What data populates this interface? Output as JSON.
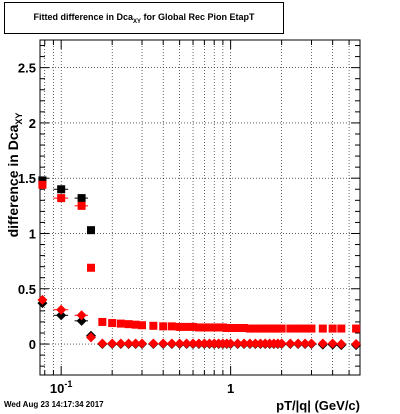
{
  "title": {
    "text_main": "Fitted difference in Dca",
    "text_sub": "XY",
    "text_rest": " for Global Rec Pion EtapT"
  },
  "timestamp": "Wed Aug 23 14:17:34 2017",
  "chart_data": {
    "type": "scatter",
    "xlabel": "pT/|q| (GeV/c)",
    "ylabel_main": "difference in Dca",
    "ylabel_sub": "XY",
    "x_scale": "log",
    "xlim": [
      0.075,
      5.8
    ],
    "ylim": [
      -0.28,
      2.75
    ],
    "x_ticks": [
      {
        "value": 0.1,
        "label": "10",
        "exp": "-1"
      },
      {
        "value": 1,
        "label": "1",
        "exp": ""
      }
    ],
    "y_ticks": [
      0,
      0.5,
      1,
      1.5,
      2,
      2.5
    ],
    "y_tick_labels": [
      "0",
      "0.5",
      "1",
      "1.5",
      "2",
      "2.5"
    ],
    "grid": true,
    "colors": {
      "black": "#000000",
      "red": "#ff0000"
    },
    "series": [
      {
        "color": "#000000",
        "marker": "square",
        "x": [
          0.0775,
          0.1,
          0.132,
          0.15
        ],
        "y": [
          1.48,
          1.4,
          1.32,
          1.03
        ],
        "xerr": [
          0.0025,
          0.01,
          0.012,
          0.003
        ]
      },
      {
        "color": "#ff0000",
        "marker": "square",
        "x": [
          0.0775,
          0.1,
          0.132,
          0.15,
          0.175,
          0.2,
          0.225,
          0.25,
          0.275,
          0.3,
          0.35,
          0.4,
          0.45,
          0.5,
          0.55,
          0.6,
          0.65,
          0.7,
          0.75,
          0.8,
          0.85,
          0.9,
          0.95,
          1.0,
          1.1,
          1.2,
          1.3,
          1.4,
          1.5,
          1.6,
          1.7,
          1.8,
          1.9,
          2.0,
          2.25,
          2.5,
          2.75,
          3.0,
          3.5,
          4.0,
          4.5,
          5.5
        ],
        "y": [
          1.44,
          1.32,
          1.25,
          0.69,
          0.2,
          0.19,
          0.185,
          0.18,
          0.175,
          0.17,
          0.165,
          0.16,
          0.16,
          0.155,
          0.155,
          0.155,
          0.15,
          0.15,
          0.15,
          0.15,
          0.15,
          0.15,
          0.145,
          0.145,
          0.145,
          0.145,
          0.14,
          0.14,
          0.14,
          0.14,
          0.14,
          0.14,
          0.14,
          0.14,
          0.14,
          0.14,
          0.14,
          0.14,
          0.14,
          0.14,
          0.14,
          0.14
        ],
        "xerr": [
          0.0025,
          0.01,
          0.012,
          0.003,
          0,
          0,
          0,
          0,
          0,
          0,
          0,
          0,
          0,
          0,
          0,
          0,
          0,
          0,
          0,
          0,
          0,
          0,
          0,
          0,
          0,
          0,
          0,
          0,
          0,
          0,
          0,
          0,
          0,
          0,
          0,
          0,
          0,
          0,
          0,
          0,
          0,
          0
        ]
      },
      {
        "color": "#000000",
        "marker": "diamond",
        "x": [
          0.0775,
          0.1,
          0.132,
          0.15,
          0.175,
          0.2,
          0.225,
          0.25,
          0.275,
          0.3,
          0.35,
          0.4,
          0.45,
          0.5,
          0.55,
          0.6,
          0.65,
          0.7,
          0.75,
          0.8,
          0.85,
          0.9,
          0.95,
          1.0,
          1.1,
          1.2,
          1.3,
          1.4,
          1.5,
          1.6,
          1.7,
          1.8,
          1.9,
          2.0,
          2.25,
          2.5,
          2.75,
          3.0,
          3.5,
          4.0,
          4.5,
          5.5
        ],
        "y": [
          0.37,
          0.26,
          0.21,
          0.075,
          0.0,
          0.0,
          0.0,
          0.0,
          0.0,
          0.0,
          0.0,
          0.0,
          0.0,
          0.0,
          0.0,
          0.0,
          0.0,
          0.0,
          0.0,
          0.0,
          0.0,
          0.0,
          0.0,
          0.0,
          0.0,
          0.0,
          0.0,
          0.0,
          0.0,
          0.0,
          0.0,
          0.0,
          0.0,
          0.0,
          0.0,
          0.0,
          0.0,
          0.0,
          -0.005,
          -0.005,
          -0.01,
          -0.01
        ],
        "xerr": [
          0.0025,
          0.01,
          0.012,
          0.003,
          0,
          0,
          0,
          0,
          0,
          0,
          0,
          0,
          0,
          0,
          0,
          0,
          0,
          0,
          0,
          0,
          0,
          0,
          0,
          0,
          0,
          0,
          0,
          0,
          0,
          0,
          0,
          0,
          0,
          0,
          0,
          0,
          0,
          0,
          0,
          0,
          0,
          0
        ]
      },
      {
        "color": "#ff0000",
        "marker": "diamond",
        "x": [
          0.0775,
          0.1,
          0.132,
          0.15,
          0.175,
          0.2,
          0.225,
          0.25,
          0.275,
          0.3,
          0.35,
          0.4,
          0.45,
          0.5,
          0.55,
          0.6,
          0.65,
          0.7,
          0.75,
          0.8,
          0.85,
          0.9,
          0.95,
          1.0,
          1.1,
          1.2,
          1.3,
          1.4,
          1.5,
          1.6,
          1.7,
          1.8,
          1.9,
          2.0,
          2.25,
          2.5,
          2.75,
          3.0,
          3.5,
          4.0,
          4.5,
          5.5
        ],
        "y": [
          0.4,
          0.31,
          0.26,
          0.06,
          0.005,
          0.005,
          0.005,
          0.005,
          0.005,
          0.005,
          0.005,
          0.005,
          0.005,
          0.005,
          0.005,
          0.005,
          0.005,
          0.005,
          0.005,
          0.005,
          0.005,
          0.005,
          0.005,
          0.005,
          0.005,
          0.005,
          0.005,
          0.005,
          0.005,
          0.005,
          0.005,
          0.005,
          0.005,
          0.005,
          0.005,
          0.005,
          0.005,
          0.005,
          0.005,
          0.005,
          0.0,
          0.0
        ],
        "xerr": [
          0.0025,
          0.01,
          0.012,
          0.003,
          0,
          0,
          0,
          0,
          0,
          0,
          0,
          0,
          0,
          0,
          0,
          0,
          0,
          0,
          0,
          0,
          0,
          0,
          0,
          0,
          0,
          0,
          0,
          0,
          0,
          0,
          0,
          0,
          0,
          0,
          0,
          0,
          0,
          0,
          0,
          0,
          0,
          0
        ]
      }
    ]
  }
}
